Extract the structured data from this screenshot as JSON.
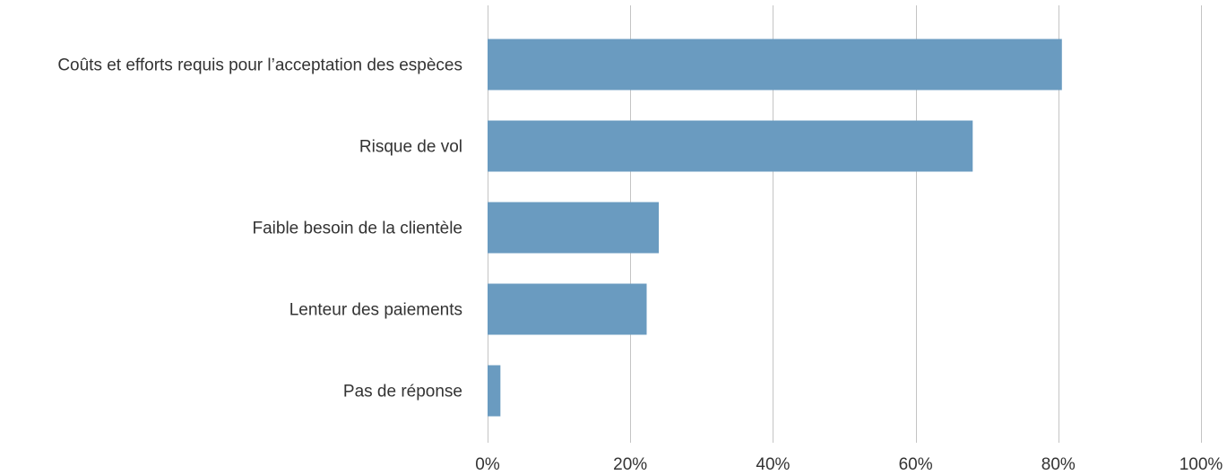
{
  "chart_data": {
    "type": "bar",
    "orientation": "horizontal",
    "categories": [
      "Coûts et efforts requis pour l’acceptation des espèces",
      "Risque de vol",
      "Faible besoin de la clientèle",
      "Lenteur des paiements",
      "Pas de réponse"
    ],
    "values": [
      80.5,
      68,
      24,
      22.3,
      1.8
    ],
    "xlim": [
      0,
      100
    ],
    "xticks": [
      0,
      20,
      40,
      60,
      80,
      100
    ],
    "xtick_labels": [
      "0%",
      "20%",
      "40%",
      "60%",
      "80%",
      "100%"
    ],
    "title": "",
    "xlabel": "",
    "ylabel": "",
    "grid": "vertical",
    "legend": "none",
    "bar_color": "#6a9bc0",
    "grid_color": "#c4c4c4",
    "text_color": "#333333"
  }
}
